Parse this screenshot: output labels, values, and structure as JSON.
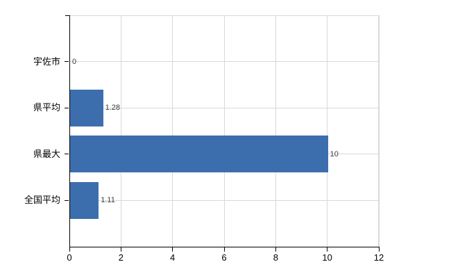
{
  "figure": {
    "background": "#ffffff"
  },
  "chart_data": {
    "type": "bar",
    "orientation": "horizontal",
    "title": "",
    "xlabel": "",
    "ylabel": "",
    "categories": [
      "宇佐市",
      "県平均",
      "県最大",
      "全国平均"
    ],
    "values": [
      0,
      1.28,
      10,
      1.11
    ],
    "value_labels": [
      "0",
      "1.28",
      "10",
      "1.11"
    ],
    "xlim": [
      0,
      12
    ],
    "xticks": [
      0,
      2,
      4,
      6,
      8,
      10,
      12
    ],
    "xtick_labels": [
      "0",
      "2",
      "4",
      "6",
      "8",
      "10",
      "12"
    ],
    "grid": true,
    "legend": false,
    "bar_color": "#3c6eae",
    "grid_color": "#d7dad7",
    "axis_color": "#000000",
    "tick_label_color": "#000000",
    "value_label_color": "#3a3a3a"
  }
}
